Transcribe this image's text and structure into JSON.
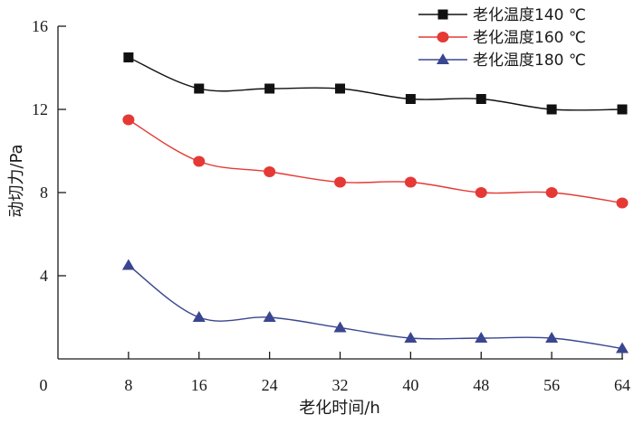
{
  "chart_data": {
    "type": "line",
    "title": "",
    "xlabel": "老化时间/h",
    "ylabel": "动切力/Pa",
    "x": [
      8,
      16,
      24,
      32,
      40,
      48,
      56,
      64
    ],
    "xlim": [
      0,
      64
    ],
    "ylim": [
      0,
      16
    ],
    "xticks": [
      8,
      16,
      24,
      32,
      40,
      48,
      56,
      64
    ],
    "xtick_labels": [
      "8",
      "16",
      "24",
      "32",
      "40",
      "48",
      "56",
      "64"
    ],
    "origin_label": "0",
    "yticks": [
      4,
      8,
      12,
      16
    ],
    "ytick_labels": [
      "4",
      "8",
      "12",
      "16"
    ],
    "grid": false,
    "legend_position": "top-right",
    "series": [
      {
        "name": "老化温度140 ℃",
        "marker": "square",
        "color": "#111111",
        "values": [
          14.5,
          13.0,
          13.0,
          13.0,
          12.5,
          12.5,
          12.0,
          12.0
        ]
      },
      {
        "name": "老化温度160 ℃",
        "marker": "circle",
        "color": "#e53935",
        "values": [
          11.5,
          9.5,
          9.0,
          8.5,
          8.5,
          8.0,
          8.0,
          7.5
        ]
      },
      {
        "name": "老化温度180 ℃",
        "marker": "triangle",
        "color": "#3a468f",
        "values": [
          4.5,
          2.0,
          2.0,
          1.5,
          1.0,
          1.0,
          1.0,
          0.5
        ]
      }
    ]
  }
}
